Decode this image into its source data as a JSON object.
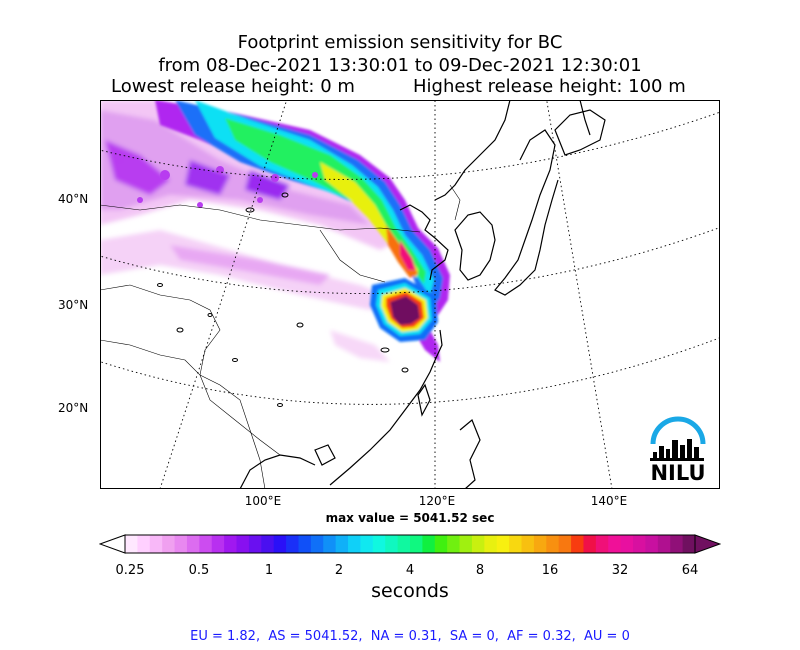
{
  "title": {
    "line1": "Footprint emission sensitivity for BC",
    "line2": "from 08-Dec-2021 13:30:01 to 09-Dec-2021 12:30:01",
    "line3_left": "Lowest release height: 0 m",
    "line3_right": "Highest release height: 100 m"
  },
  "map": {
    "lon_labels": [
      "100°E",
      "120°E",
      "140°E"
    ],
    "lat_labels": [
      "40°N",
      "30°N",
      "20°N"
    ],
    "logo_text": "NILU",
    "logo_color": "#1aa8e6"
  },
  "max_value_label": "max value = 5041.52 sec",
  "colorbar": {
    "tick_labels": [
      "0.25",
      "0.5",
      "1",
      "2",
      "4",
      "8",
      "16",
      "32",
      "64"
    ],
    "units_label": "seconds",
    "colors": [
      "#ffe8ff",
      "#ffd0ff",
      "#f8b8f8",
      "#f0a0f0",
      "#e888f0",
      "#dc6cf0",
      "#cc4cf0",
      "#b830f0",
      "#a018f0",
      "#8810f0",
      "#6a10f0",
      "#4a10f0",
      "#2a10f8",
      "#1a30f8",
      "#1050f8",
      "#1070f8",
      "#1090f8",
      "#10b0f8",
      "#10d0f8",
      "#10e8f0",
      "#10f8e0",
      "#10f8c0",
      "#10f8a0",
      "#10f880",
      "#10f040",
      "#40f010",
      "#70f010",
      "#a0f010",
      "#c8f010",
      "#e8f010",
      "#f8f010",
      "#f8d810",
      "#f8c010",
      "#f8a810",
      "#f89010",
      "#f87810",
      "#f83c10",
      "#f01048",
      "#f01078",
      "#f01098",
      "#e810a0",
      "#d810a0",
      "#c810a0",
      "#b01090",
      "#901078",
      "#701060"
    ]
  },
  "regions_label": "EU = 1.82,  AS = 5041.52,  NA = 0.31,  SA = 0,  AF = 0.32,  AU = 0"
}
